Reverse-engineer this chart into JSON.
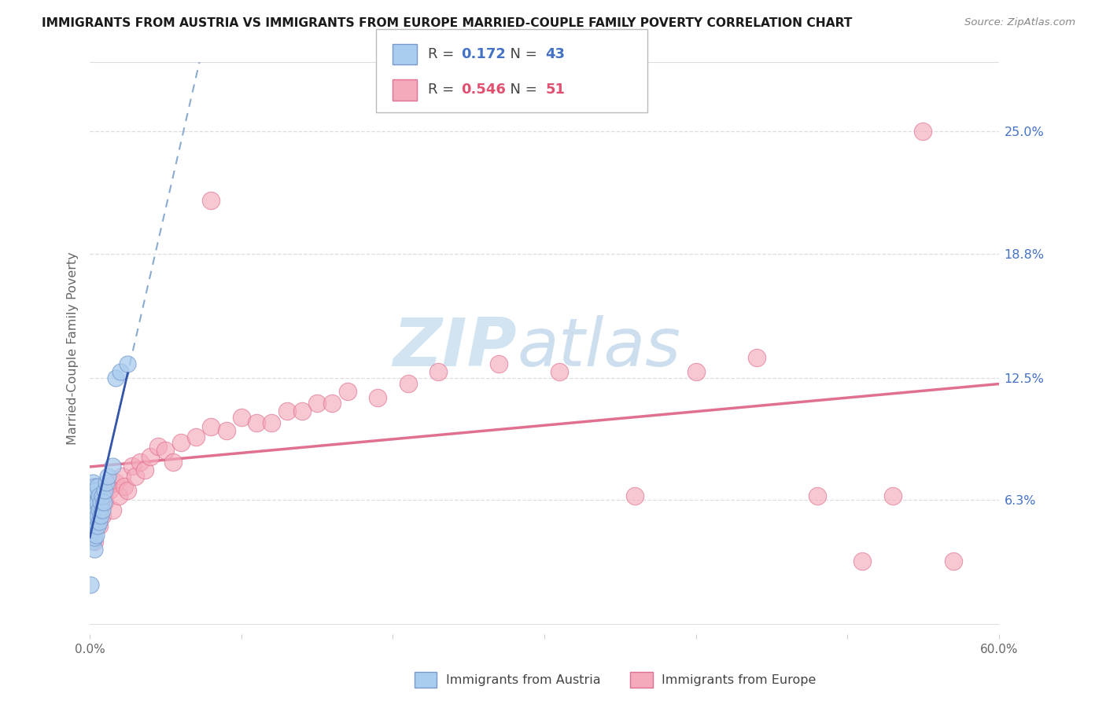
{
  "title": "IMMIGRANTS FROM AUSTRIA VS IMMIGRANTS FROM EUROPE MARRIED-COUPLE FAMILY POVERTY CORRELATION CHART",
  "source": "Source: ZipAtlas.com",
  "ylabel": "Married-Couple Family Poverty",
  "yticks_right": [
    "25.0%",
    "18.8%",
    "12.5%",
    "6.3%"
  ],
  "yticks_right_vals": [
    0.25,
    0.188,
    0.125,
    0.063
  ],
  "legend_label1": "Immigrants from Austria",
  "legend_label2": "Immigrants from Europe",
  "R1": "0.172",
  "N1": "43",
  "R2": "0.546",
  "N2": "51",
  "color_austria_fill": "#AACCEE",
  "color_austria_edge": "#7799CC",
  "color_europe_fill": "#F4AABB",
  "color_europe_edge": "#E07090",
  "color_austria_line": "#8AAAD0",
  "color_europe_line": "#E07090",
  "watermark_color": "#D0E4F4",
  "xlim": [
    0.0,
    0.6
  ],
  "ylim": [
    -0.005,
    0.285
  ],
  "austria_x": [
    0.0005,
    0.001,
    0.001,
    0.001,
    0.001,
    0.0015,
    0.002,
    0.002,
    0.002,
    0.002,
    0.002,
    0.002,
    0.003,
    0.003,
    0.003,
    0.003,
    0.003,
    0.003,
    0.003,
    0.004,
    0.004,
    0.004,
    0.004,
    0.004,
    0.005,
    0.005,
    0.005,
    0.005,
    0.006,
    0.006,
    0.006,
    0.007,
    0.007,
    0.008,
    0.008,
    0.009,
    0.01,
    0.011,
    0.012,
    0.015,
    0.017,
    0.02,
    0.025
  ],
  "austria_y": [
    0.02,
    0.048,
    0.052,
    0.058,
    0.068,
    0.06,
    0.042,
    0.048,
    0.055,
    0.06,
    0.065,
    0.072,
    0.038,
    0.044,
    0.05,
    0.055,
    0.06,
    0.065,
    0.07,
    0.045,
    0.052,
    0.058,
    0.062,
    0.068,
    0.05,
    0.055,
    0.062,
    0.07,
    0.052,
    0.058,
    0.065,
    0.055,
    0.062,
    0.058,
    0.065,
    0.062,
    0.068,
    0.072,
    0.075,
    0.08,
    0.125,
    0.128,
    0.132
  ],
  "europe_x": [
    0.002,
    0.003,
    0.004,
    0.005,
    0.006,
    0.007,
    0.008,
    0.009,
    0.01,
    0.012,
    0.013,
    0.015,
    0.017,
    0.019,
    0.021,
    0.023,
    0.025,
    0.028,
    0.03,
    0.033,
    0.036,
    0.04,
    0.045,
    0.05,
    0.055,
    0.06,
    0.07,
    0.08,
    0.09,
    0.1,
    0.11,
    0.13,
    0.15,
    0.17,
    0.19,
    0.21,
    0.23,
    0.27,
    0.31,
    0.36,
    0.4,
    0.44,
    0.48,
    0.51,
    0.53,
    0.55,
    0.57,
    0.12,
    0.14,
    0.16,
    0.08
  ],
  "europe_y": [
    0.048,
    0.042,
    0.052,
    0.058,
    0.05,
    0.06,
    0.055,
    0.065,
    0.062,
    0.07,
    0.068,
    0.058,
    0.072,
    0.065,
    0.075,
    0.07,
    0.068,
    0.08,
    0.075,
    0.082,
    0.078,
    0.085,
    0.09,
    0.088,
    0.082,
    0.092,
    0.095,
    0.1,
    0.098,
    0.105,
    0.102,
    0.108,
    0.112,
    0.118,
    0.115,
    0.122,
    0.128,
    0.132,
    0.128,
    0.065,
    0.128,
    0.135,
    0.065,
    0.032,
    0.065,
    0.25,
    0.032,
    0.102,
    0.108,
    0.112,
    0.215
  ]
}
